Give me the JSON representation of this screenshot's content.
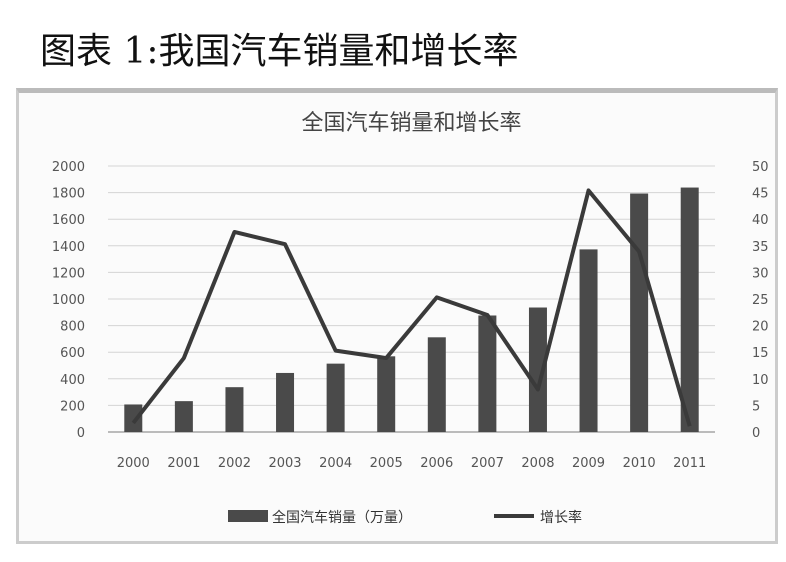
{
  "figure_title": "图表 1:我国汽车销量和增长率",
  "chart_data": {
    "type": "bar+line",
    "title": "全国汽车销量和增长率",
    "categories": [
      "2000",
      "2001",
      "2002",
      "2003",
      "2004",
      "2005",
      "2006",
      "2007",
      "2008",
      "2009",
      "2010",
      "2011"
    ],
    "series": [
      {
        "name": "全国汽车销量（万量）",
        "type": "bar",
        "axis": "left",
        "values": [
          207,
          232,
          337,
          444,
          514,
          569,
          712,
          876,
          936,
          1373,
          1793,
          1838
        ]
      },
      {
        "name": "增长率",
        "type": "line",
        "axis": "right",
        "values": [
          1.7,
          13.9,
          37.6,
          35.3,
          15.3,
          13.9,
          25.3,
          22,
          8,
          45.4,
          33.9,
          1.1
        ]
      }
    ],
    "ylim_left": [
      0,
      2000
    ],
    "yticks_left": [
      "0",
      "200",
      "400",
      "600",
      "800",
      "1000",
      "1200",
      "1400",
      "1600",
      "1800",
      "2000"
    ],
    "ylim_right": [
      0,
      50
    ],
    "yticks_right": [
      "0",
      "5",
      "10",
      "15",
      "20",
      "25",
      "30",
      "35",
      "40",
      "45",
      "50"
    ],
    "grid": true,
    "legend": "bottom",
    "color": "#4a4a4a"
  }
}
